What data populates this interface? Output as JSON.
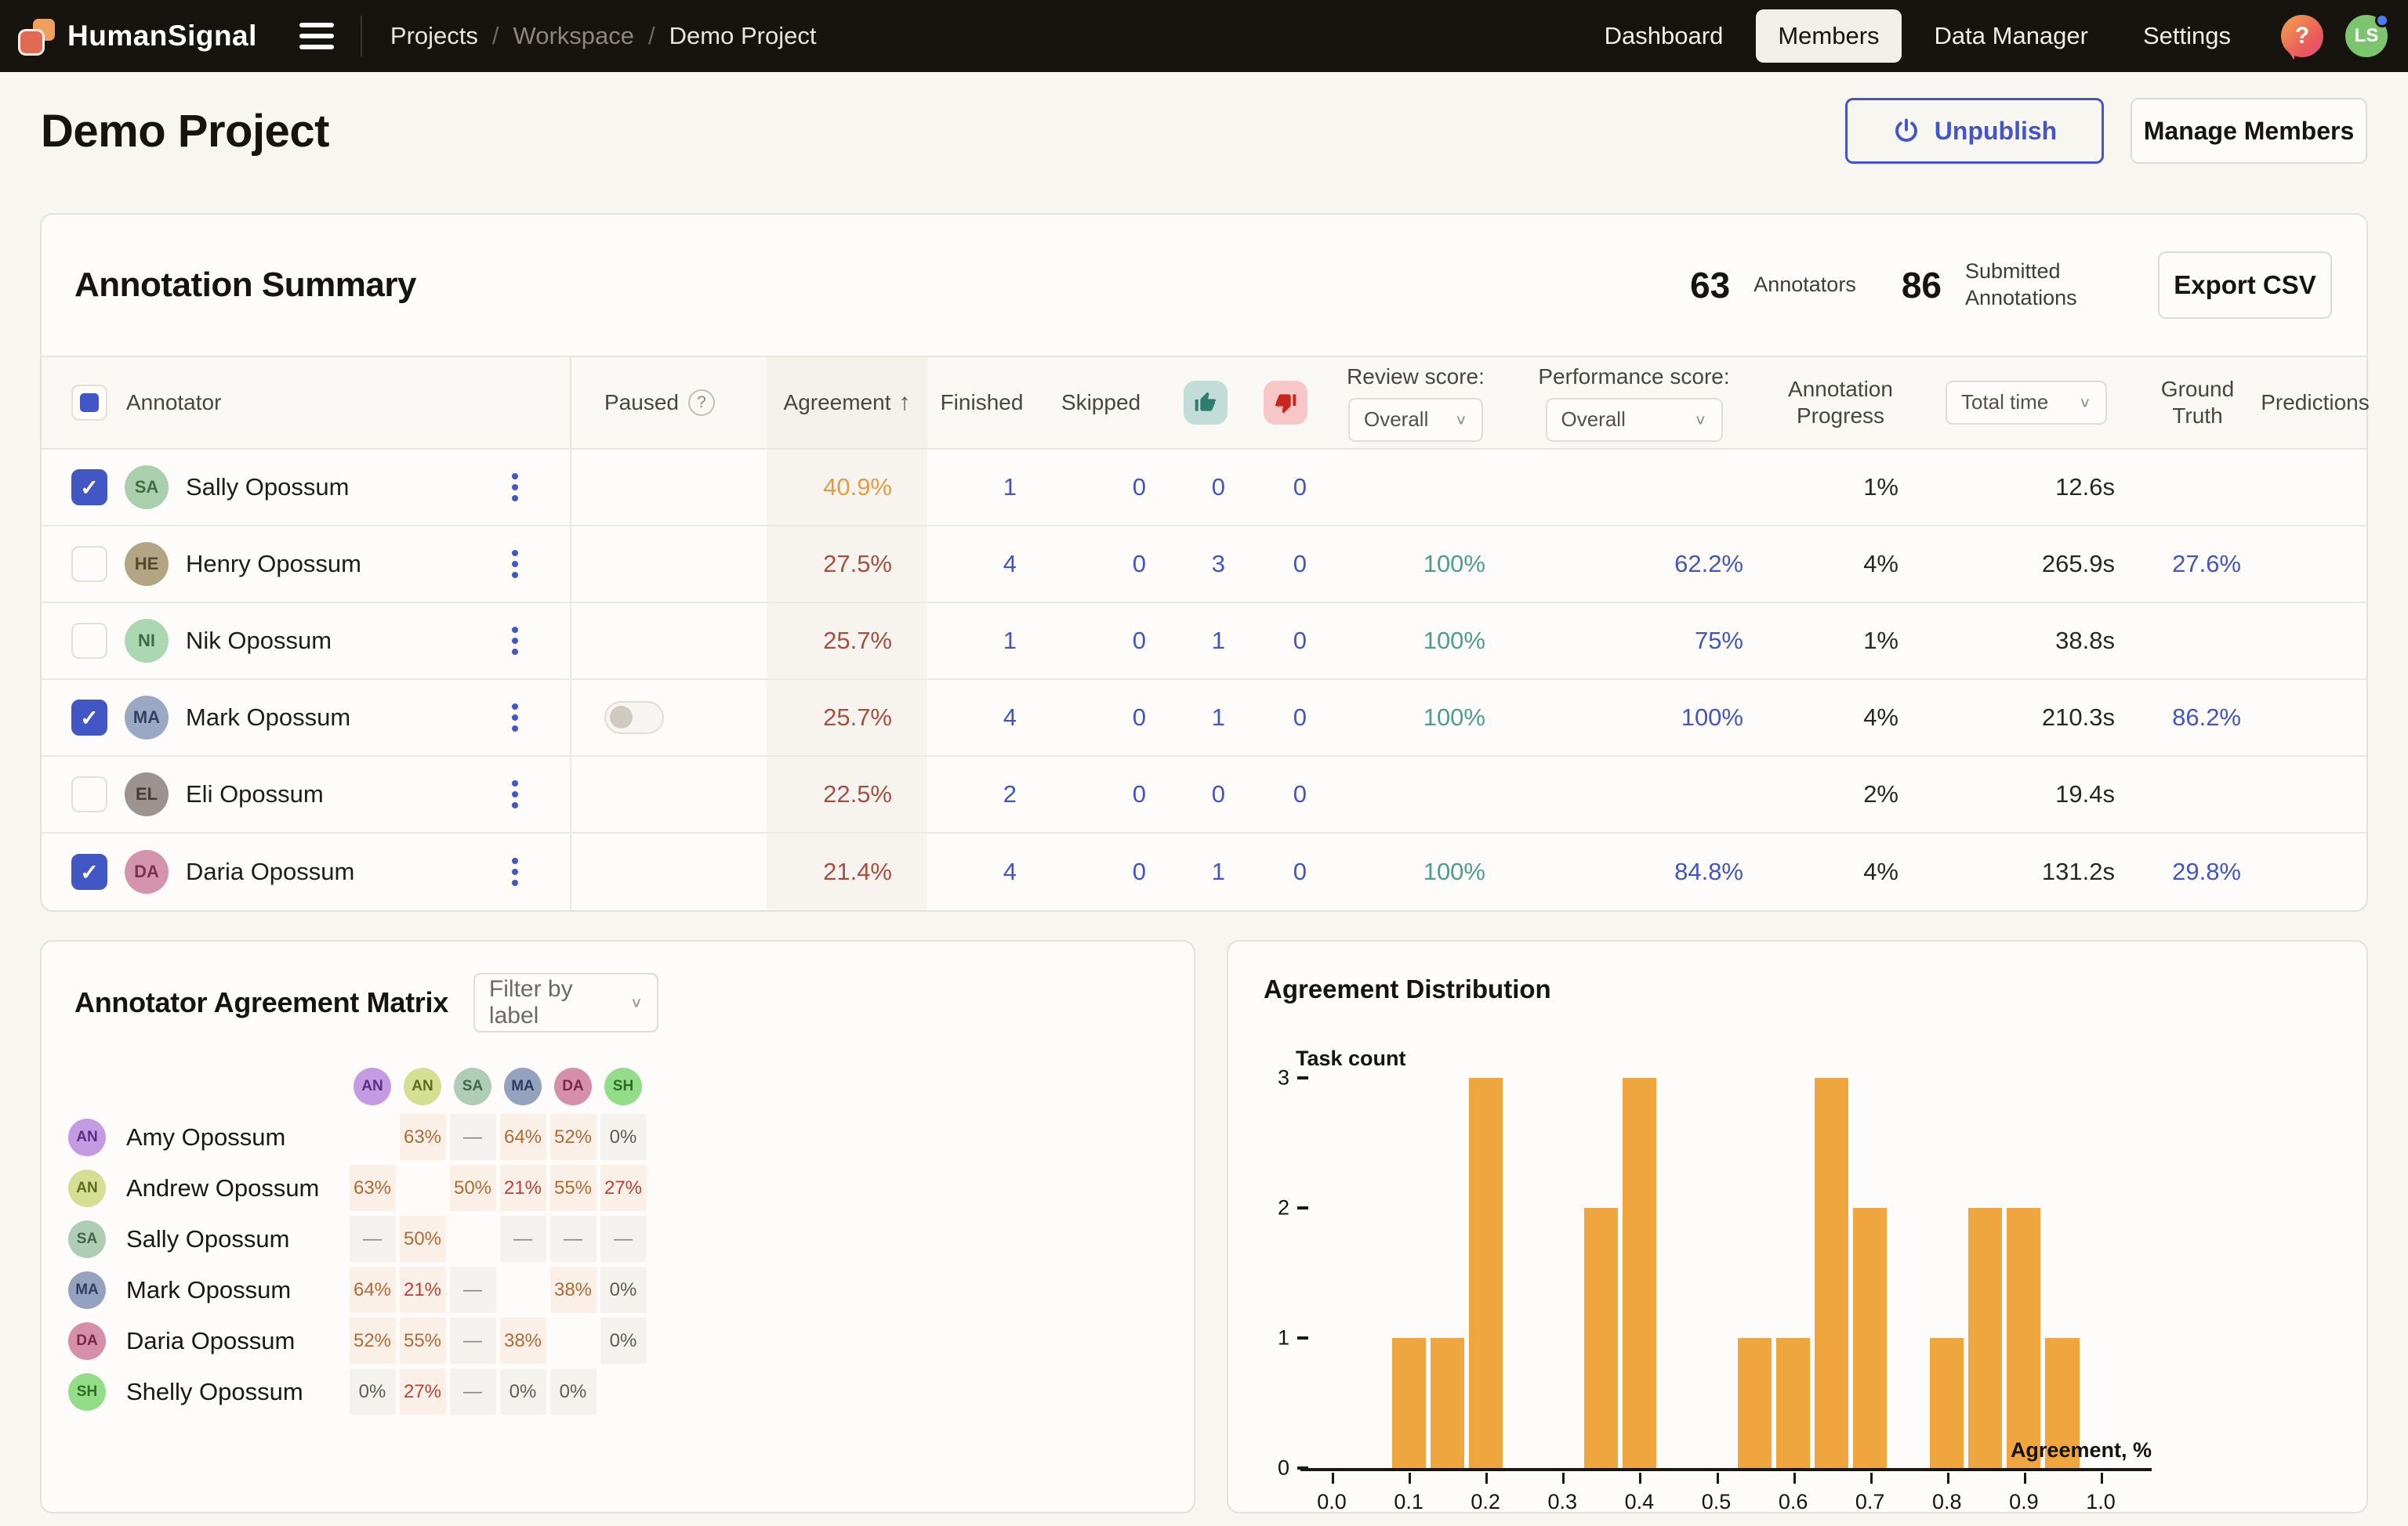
{
  "navbar": {
    "brand": "HumanSignal",
    "breadcrumbs": [
      {
        "label": "Projects",
        "muted": false
      },
      {
        "label": "Workspace",
        "muted": true
      },
      {
        "label": "Demo Project",
        "muted": false
      }
    ],
    "links": [
      {
        "label": "Dashboard",
        "active": false
      },
      {
        "label": "Members",
        "active": true
      },
      {
        "label": "Data Manager",
        "active": false
      },
      {
        "label": "Settings",
        "active": false
      }
    ],
    "help_label": "?",
    "avatar_initials": "LS"
  },
  "header": {
    "title": "Demo Project",
    "unpublish_label": "Unpublish",
    "manage_members_label": "Manage Members"
  },
  "summary": {
    "title": "Annotation Summary",
    "annotators_count": "63",
    "annotators_label": "Annotators",
    "submitted_count": "86",
    "submitted_label": "Submitted Annotations",
    "export_label": "Export CSV"
  },
  "table": {
    "columns": {
      "annotator": "Annotator",
      "paused": "Paused",
      "agreement": "Agreement",
      "finished": "Finished",
      "skipped": "Skipped",
      "accepted_icon": "thumbs-up",
      "rejected_icon": "thumbs-down",
      "review_score_label": "Review score:",
      "review_score_value": "Overall",
      "performance_score_label": "Performance score:",
      "performance_score_value": "Overall",
      "annotation_progress": "Annotation Progress",
      "total_time": "Total time",
      "ground_truth": "Ground Truth",
      "predictions": "Predictions"
    },
    "rows": [
      {
        "name": "Sally Opossum",
        "initials": "SA",
        "avatar_bg": "#A9CFAC",
        "avatar_fg": "#3F6B46",
        "checked": true,
        "paused_toggle": false,
        "agreement": "40.9%",
        "agreement_color": "#E59B43",
        "finished": "1",
        "skipped": "0",
        "accepted": "0",
        "rejected": "0",
        "review": "",
        "performance": "",
        "progress": "1%",
        "total_time": "12.6s",
        "ground_truth": "",
        "predictions": ""
      },
      {
        "name": "Henry Opossum",
        "initials": "HE",
        "avatar_bg": "#B3A584",
        "avatar_fg": "#554930",
        "checked": false,
        "paused_toggle": false,
        "agreement": "27.5%",
        "agreement_color": "#A8503F",
        "finished": "4",
        "skipped": "0",
        "accepted": "3",
        "rejected": "0",
        "review": "100%",
        "performance": "62.2%",
        "progress": "4%",
        "total_time": "265.9s",
        "ground_truth": "27.6%",
        "predictions": ""
      },
      {
        "name": "Nik Opossum",
        "initials": "NI",
        "avatar_bg": "#ABD8B0",
        "avatar_fg": "#3E6B44",
        "checked": false,
        "paused_toggle": false,
        "agreement": "25.7%",
        "agreement_color": "#A8503F",
        "finished": "1",
        "skipped": "0",
        "accepted": "1",
        "rejected": "0",
        "review": "100%",
        "performance": "75%",
        "progress": "1%",
        "total_time": "38.8s",
        "ground_truth": "",
        "predictions": ""
      },
      {
        "name": "Mark Opossum",
        "initials": "MA",
        "avatar_bg": "#9AA8C4",
        "avatar_fg": "#333F63",
        "checked": true,
        "paused_toggle": true,
        "agreement": "25.7%",
        "agreement_color": "#A8503F",
        "finished": "4",
        "skipped": "0",
        "accepted": "1",
        "rejected": "0",
        "review": "100%",
        "performance": "100%",
        "progress": "4%",
        "total_time": "210.3s",
        "ground_truth": "86.2%",
        "predictions": ""
      },
      {
        "name": "Eli Opossum",
        "initials": "EL",
        "avatar_bg": "#9C9290",
        "avatar_fg": "#453D3B",
        "checked": false,
        "paused_toggle": false,
        "agreement": "22.5%",
        "agreement_color": "#A8503F",
        "finished": "2",
        "skipped": "0",
        "accepted": "0",
        "rejected": "0",
        "review": "",
        "performance": "",
        "progress": "2%",
        "total_time": "19.4s",
        "ground_truth": "",
        "predictions": ""
      },
      {
        "name": "Daria Opossum",
        "initials": "DA",
        "avatar_bg": "#D494AE",
        "avatar_fg": "#76334D",
        "checked": true,
        "paused_toggle": false,
        "agreement": "21.4%",
        "agreement_color": "#A8503F",
        "finished": "4",
        "skipped": "0",
        "accepted": "1",
        "rejected": "0",
        "review": "100%",
        "performance": "84.8%",
        "progress": "4%",
        "total_time": "131.2s",
        "ground_truth": "29.8%",
        "predictions": ""
      }
    ]
  },
  "matrix": {
    "title": "Annotator Agreement Matrix",
    "filter_label": "Filter by label",
    "columns": [
      {
        "initials": "AN",
        "bg": "#C49BE3",
        "fg": "#5B2E85"
      },
      {
        "initials": "AN",
        "bg": "#D3DF93",
        "fg": "#5F6A1F"
      },
      {
        "initials": "SA",
        "bg": "#AECDB4",
        "fg": "#3E6647"
      },
      {
        "initials": "MA",
        "bg": "#93A2BE",
        "fg": "#2E3E60"
      },
      {
        "initials": "DA",
        "bg": "#D68FA8",
        "fg": "#7A2743"
      },
      {
        "initials": "SH",
        "bg": "#94DD88",
        "fg": "#2F6B27"
      }
    ],
    "rows": [
      {
        "name": "Amy Opossum",
        "initials": "AN",
        "bg": "#C49BE3",
        "fg": "#5B2E85",
        "cells": [
          {
            "t": "",
            "s": "self"
          },
          {
            "t": "63%",
            "s": "orange"
          },
          {
            "t": "—",
            "s": "dash"
          },
          {
            "t": "64%",
            "s": "orange"
          },
          {
            "t": "52%",
            "s": "orange"
          },
          {
            "t": "0%",
            "s": "zero"
          }
        ]
      },
      {
        "name": "Andrew Opossum",
        "initials": "AN",
        "bg": "#D3DF93",
        "fg": "#5F6A1F",
        "cells": [
          {
            "t": "63%",
            "s": "orange"
          },
          {
            "t": "",
            "s": "self"
          },
          {
            "t": "50%",
            "s": "orange"
          },
          {
            "t": "21%",
            "s": "red"
          },
          {
            "t": "55%",
            "s": "orange"
          },
          {
            "t": "27%",
            "s": "red"
          }
        ]
      },
      {
        "name": "Sally Opossum",
        "initials": "SA",
        "bg": "#AECDB4",
        "fg": "#3E6647",
        "cells": [
          {
            "t": "—",
            "s": "dash"
          },
          {
            "t": "50%",
            "s": "orange"
          },
          {
            "t": "",
            "s": "self"
          },
          {
            "t": "—",
            "s": "dash"
          },
          {
            "t": "—",
            "s": "dash"
          },
          {
            "t": "—",
            "s": "dash"
          }
        ]
      },
      {
        "name": "Mark Opossum",
        "initials": "MA",
        "bg": "#93A2BE",
        "fg": "#2E3E60",
        "cells": [
          {
            "t": "64%",
            "s": "orange"
          },
          {
            "t": "21%",
            "s": "red"
          },
          {
            "t": "—",
            "s": "dash"
          },
          {
            "t": "",
            "s": "self"
          },
          {
            "t": "38%",
            "s": "orange"
          },
          {
            "t": "0%",
            "s": "zero"
          }
        ]
      },
      {
        "name": "Daria Opossum",
        "initials": "DA",
        "bg": "#D68FA8",
        "fg": "#7A2743",
        "cells": [
          {
            "t": "52%",
            "s": "orange"
          },
          {
            "t": "55%",
            "s": "orange"
          },
          {
            "t": "—",
            "s": "dash"
          },
          {
            "t": "38%",
            "s": "orange"
          },
          {
            "t": "",
            "s": "self"
          },
          {
            "t": "0%",
            "s": "zero"
          }
        ]
      },
      {
        "name": "Shelly Opossum",
        "initials": "SH",
        "bg": "#94DD88",
        "fg": "#2F6B27",
        "cells": [
          {
            "t": "0%",
            "s": "zero"
          },
          {
            "t": "27%",
            "s": "red"
          },
          {
            "t": "—",
            "s": "dash"
          },
          {
            "t": "0%",
            "s": "zero"
          },
          {
            "t": "0%",
            "s": "zero"
          },
          {
            "t": "",
            "s": "self"
          }
        ]
      }
    ]
  },
  "chart_data": {
    "type": "bar",
    "title": "Agreement Distribution",
    "xlabel": "Agreement, %",
    "ylabel": "Task count",
    "x": [
      0.1,
      0.15,
      0.2,
      0.35,
      0.4,
      0.55,
      0.6,
      0.65,
      0.7,
      0.8,
      0.85,
      0.9,
      0.95
    ],
    "values": [
      1,
      1,
      3,
      2,
      3,
      1,
      1,
      3,
      2,
      1,
      2,
      2,
      1
    ],
    "bin_width": 0.05,
    "bar_color": "#F0A63E",
    "xticks": [
      0.0,
      0.1,
      0.2,
      0.3,
      0.4,
      0.5,
      0.6,
      0.7,
      0.8,
      0.9,
      1.0
    ],
    "yticks": [
      0,
      1,
      2,
      3
    ],
    "xlim": [
      -0.05,
      1.05
    ],
    "ylim": [
      0,
      3
    ],
    "grid": false,
    "legend": false
  }
}
